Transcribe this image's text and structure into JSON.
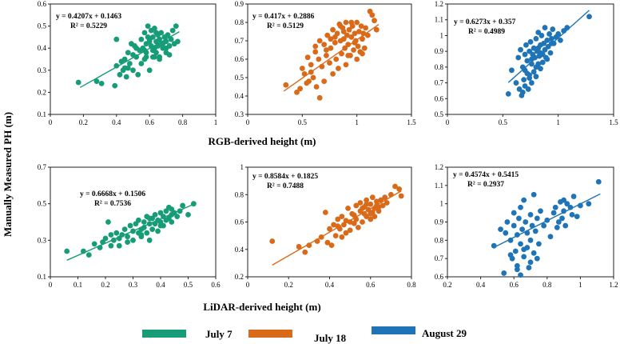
{
  "figure": {
    "y_axis_label": "Manually  Measured PH (m)",
    "rgb_axis_label": "RGB-derived height (m)",
    "lidar_axis_label": "LiDAR-derived height (m)"
  },
  "legend": {
    "items": [
      {
        "label": "July 7",
        "color": "#169c77"
      },
      {
        "label": "July 18",
        "color": "#d96a1a"
      },
      {
        "label": "August 29",
        "color": "#1e74b6"
      }
    ]
  },
  "chart_data": [
    {
      "type": "scatter",
      "id": "rgb-jul7",
      "row": "RGB",
      "series": "July 7",
      "color": "#169c77",
      "equation": "y = 0.4207x + 0.1463",
      "r2": "R² = 0.5229",
      "slope": 0.4207,
      "intercept": 0.1463,
      "fit_range": [
        0.18,
        0.78
      ],
      "xlim": [
        0,
        1
      ],
      "ylim": [
        0.1,
        0.6
      ],
      "xticks": [
        0,
        0.2,
        0.4,
        0.6,
        0.8,
        1
      ],
      "yticks": [
        0.1,
        0.2,
        0.3,
        0.4,
        0.5,
        0.6
      ],
      "xticklabels": [
        "0",
        "0.2",
        "0.4",
        "0.6",
        "0.8",
        "1"
      ],
      "yticklabels": [
        "0.1",
        "0.2",
        "0.3",
        "0.4",
        "0.5",
        "0.6"
      ],
      "x": [
        0.17,
        0.28,
        0.31,
        0.4,
        0.4,
        0.39,
        0.42,
        0.43,
        0.44,
        0.45,
        0.46,
        0.47,
        0.48,
        0.49,
        0.5,
        0.5,
        0.51,
        0.52,
        0.53,
        0.54,
        0.55,
        0.56,
        0.57,
        0.57,
        0.58,
        0.58,
        0.59,
        0.6,
        0.6,
        0.61,
        0.61,
        0.62,
        0.62,
        0.63,
        0.63,
        0.64,
        0.64,
        0.65,
        0.65,
        0.66,
        0.66,
        0.67,
        0.67,
        0.68,
        0.69,
        0.7,
        0.7,
        0.71,
        0.72,
        0.73,
        0.74,
        0.75,
        0.76,
        0.77,
        0.58,
        0.62,
        0.55,
        0.66,
        0.7,
        0.52,
        0.47,
        0.59,
        0.64,
        0.68,
        0.72,
        0.45,
        0.6,
        0.57,
        0.63
      ],
      "y": [
        0.245,
        0.25,
        0.24,
        0.44,
        0.32,
        0.23,
        0.28,
        0.34,
        0.3,
        0.35,
        0.27,
        0.38,
        0.33,
        0.42,
        0.3,
        0.37,
        0.41,
        0.36,
        0.28,
        0.39,
        0.44,
        0.4,
        0.35,
        0.47,
        0.42,
        0.38,
        0.5,
        0.44,
        0.3,
        0.41,
        0.48,
        0.36,
        0.45,
        0.4,
        0.49,
        0.43,
        0.38,
        0.46,
        0.41,
        0.44,
        0.36,
        0.47,
        0.42,
        0.4,
        0.45,
        0.38,
        0.43,
        0.46,
        0.41,
        0.44,
        0.48,
        0.42,
        0.5,
        0.43,
        0.36,
        0.39,
        0.33,
        0.35,
        0.4,
        0.4,
        0.31,
        0.45,
        0.47,
        0.42,
        0.37,
        0.31,
        0.43,
        0.39,
        0.36
      ]
    },
    {
      "type": "scatter",
      "id": "rgb-jul18",
      "row": "RGB",
      "series": "July 18",
      "color": "#d96a1a",
      "equation": "y = 0.417x + 0.2886",
      "r2": "R² = 0.5129",
      "slope": 0.417,
      "intercept": 0.2886,
      "fit_range": [
        0.33,
        1.2
      ],
      "xlim": [
        0,
        1.5
      ],
      "ylim": [
        0.3,
        0.9
      ],
      "xticks": [
        0,
        0.5,
        1,
        1.5
      ],
      "yticks": [
        0.3,
        0.4,
        0.5,
        0.6,
        0.7,
        0.8,
        0.9
      ],
      "xticklabels": [
        "0",
        "0.5",
        "1",
        "1.5"
      ],
      "yticklabels": [
        "0.3",
        "0.4",
        "0.5",
        "0.6",
        "0.7",
        "0.8",
        "0.9"
      ],
      "x": [
        0.35,
        0.45,
        0.48,
        0.5,
        0.52,
        0.55,
        0.56,
        0.58,
        0.6,
        0.62,
        0.63,
        0.65,
        0.66,
        0.68,
        0.7,
        0.7,
        0.72,
        0.73,
        0.75,
        0.76,
        0.78,
        0.78,
        0.8,
        0.81,
        0.82,
        0.83,
        0.84,
        0.85,
        0.86,
        0.87,
        0.88,
        0.89,
        0.9,
        0.9,
        0.91,
        0.92,
        0.93,
        0.94,
        0.95,
        0.96,
        0.97,
        0.98,
        0.99,
        1.0,
        1.01,
        1.02,
        1.03,
        1.04,
        1.05,
        1.06,
        1.07,
        1.08,
        1.1,
        1.12,
        1.14,
        1.16,
        1.18,
        0.95,
        0.88,
        0.8,
        0.72,
        0.66,
        0.58,
        0.92,
        1.0,
        0.85,
        0.76,
        0.62,
        0.54,
        0.98,
        1.05
      ],
      "y": [
        0.46,
        0.42,
        0.44,
        0.55,
        0.52,
        0.61,
        0.48,
        0.57,
        0.5,
        0.64,
        0.45,
        0.6,
        0.39,
        0.56,
        0.68,
        0.48,
        0.62,
        0.73,
        0.58,
        0.66,
        0.52,
        0.76,
        0.69,
        0.6,
        0.74,
        0.55,
        0.79,
        0.7,
        0.63,
        0.77,
        0.71,
        0.66,
        0.8,
        0.57,
        0.73,
        0.68,
        0.76,
        0.62,
        0.72,
        0.78,
        0.65,
        0.74,
        0.7,
        0.8,
        0.67,
        0.75,
        0.64,
        0.78,
        0.71,
        0.74,
        0.66,
        0.77,
        0.73,
        0.86,
        0.84,
        0.81,
        0.76,
        0.8,
        0.75,
        0.72,
        0.65,
        0.7,
        0.53,
        0.62,
        0.6,
        0.78,
        0.71,
        0.67,
        0.47,
        0.69,
        0.63
      ]
    },
    {
      "type": "scatter",
      "id": "rgb-aug29",
      "row": "RGB",
      "series": "August 29",
      "color": "#1e74b6",
      "equation": "y = 0.6273x + 0.357",
      "r2": "R² = 0.4989",
      "slope": 0.6273,
      "intercept": 0.357,
      "fit_range": [
        0.55,
        1.28
      ],
      "xlim": [
        0,
        1.5
      ],
      "ylim": [
        0.5,
        1.2
      ],
      "xticks": [
        0,
        0.5,
        1,
        1.5
      ],
      "yticks": [
        0.5,
        0.6,
        0.7,
        0.8,
        0.9,
        1.0,
        1.1,
        1.2
      ],
      "xticklabels": [
        "0",
        "0.5",
        "1",
        "1.5"
      ],
      "yticklabels": [
        "0.5",
        "0.6",
        "0.7",
        "0.8",
        "0.9",
        "1",
        "1.1",
        "1.2"
      ],
      "x": [
        0.55,
        0.58,
        0.62,
        0.64,
        0.65,
        0.66,
        0.67,
        0.68,
        0.69,
        0.7,
        0.7,
        0.71,
        0.72,
        0.72,
        0.73,
        0.74,
        0.74,
        0.75,
        0.76,
        0.76,
        0.77,
        0.78,
        0.78,
        0.79,
        0.8,
        0.8,
        0.81,
        0.82,
        0.82,
        0.83,
        0.84,
        0.84,
        0.85,
        0.86,
        0.86,
        0.87,
        0.88,
        0.88,
        0.89,
        0.9,
        0.91,
        0.92,
        0.93,
        0.94,
        0.95,
        0.96,
        0.98,
        1.0,
        1.02,
        1.05,
        1.08,
        1.28,
        0.9,
        0.8,
        0.7,
        0.76,
        0.84,
        0.94,
        0.68,
        0.74,
        0.82
      ],
      "y": [
        0.63,
        0.78,
        0.7,
        0.86,
        0.66,
        0.91,
        0.62,
        0.8,
        0.72,
        0.88,
        0.68,
        0.94,
        0.76,
        0.84,
        0.66,
        0.9,
        0.73,
        0.96,
        0.82,
        0.7,
        0.88,
        0.77,
        0.92,
        0.86,
        0.98,
        0.74,
        0.9,
        0.82,
        1.02,
        0.87,
        0.94,
        0.79,
        1.0,
        0.88,
        0.83,
        0.95,
        0.91,
        1.05,
        0.86,
        0.97,
        0.93,
        1.01,
        0.89,
        0.98,
        1.04,
        0.95,
        0.99,
        1.01,
        0.97,
        1.03,
        1.05,
        1.12,
        0.85,
        0.8,
        0.78,
        0.85,
        0.89,
        0.95,
        0.64,
        0.75,
        0.92
      ]
    },
    {
      "type": "scatter",
      "id": "lidar-jul7",
      "row": "LiDAR",
      "series": "July 7",
      "color": "#169c77",
      "equation": "y = 0.6668x + 0.1506",
      "r2": "R² = 0.7536",
      "slope": 0.6668,
      "intercept": 0.1506,
      "fit_range": [
        0.06,
        0.52
      ],
      "xlim": [
        0,
        0.6
      ],
      "ylim": [
        0.1,
        0.7
      ],
      "xticks": [
        0,
        0.1,
        0.2,
        0.3,
        0.4,
        0.5,
        0.6
      ],
      "yticks": [
        0.1,
        0.3,
        0.5,
        0.7
      ],
      "xticklabels": [
        "0",
        "0.1",
        "0.2",
        "0.3",
        "0.4",
        "0.5",
        "0.6"
      ],
      "yticklabels": [
        "0.1",
        "0.3",
        "0.5",
        "0.7"
      ],
      "x": [
        0.06,
        0.12,
        0.14,
        0.16,
        0.18,
        0.19,
        0.2,
        0.21,
        0.22,
        0.22,
        0.23,
        0.24,
        0.25,
        0.25,
        0.26,
        0.27,
        0.28,
        0.29,
        0.3,
        0.3,
        0.31,
        0.32,
        0.32,
        0.33,
        0.33,
        0.34,
        0.34,
        0.35,
        0.35,
        0.36,
        0.36,
        0.37,
        0.37,
        0.38,
        0.38,
        0.39,
        0.39,
        0.4,
        0.4,
        0.41,
        0.41,
        0.42,
        0.42,
        0.43,
        0.43,
        0.44,
        0.44,
        0.45,
        0.46,
        0.47,
        0.48,
        0.5,
        0.52,
        0.36,
        0.4,
        0.28,
        0.44,
        0.33
      ],
      "y": [
        0.24,
        0.24,
        0.22,
        0.28,
        0.26,
        0.29,
        0.31,
        0.4,
        0.33,
        0.27,
        0.3,
        0.34,
        0.31,
        0.27,
        0.33,
        0.36,
        0.32,
        0.38,
        0.35,
        0.3,
        0.39,
        0.34,
        0.41,
        0.36,
        0.32,
        0.4,
        0.37,
        0.43,
        0.34,
        0.39,
        0.3,
        0.42,
        0.36,
        0.44,
        0.39,
        0.41,
        0.35,
        0.45,
        0.4,
        0.43,
        0.38,
        0.46,
        0.41,
        0.48,
        0.42,
        0.44,
        0.47,
        0.45,
        0.43,
        0.46,
        0.49,
        0.44,
        0.5,
        0.42,
        0.38,
        0.29,
        0.4,
        0.33
      ]
    },
    {
      "type": "scatter",
      "id": "lidar-jul18",
      "row": "LiDAR",
      "series": "July 18",
      "color": "#d96a1a",
      "equation": "y = 0.8584x + 0.1825",
      "r2": "R² = 0.7488",
      "slope": 0.8584,
      "intercept": 0.1825,
      "fit_range": [
        0.12,
        0.75
      ],
      "xlim": [
        0,
        0.8
      ],
      "ylim": [
        0.2,
        1.0
      ],
      "xticks": [
        0,
        0.2,
        0.4,
        0.6,
        0.8
      ],
      "yticks": [
        0.2,
        0.4,
        0.6,
        0.8,
        1.0
      ],
      "xticklabels": [
        "0",
        "0.2",
        "0.4",
        "0.6",
        "0.8"
      ],
      "yticklabels": [
        "0.2",
        "0.4",
        "0.6",
        "0.8",
        "1"
      ],
      "x": [
        0.12,
        0.25,
        0.28,
        0.3,
        0.34,
        0.36,
        0.38,
        0.39,
        0.4,
        0.41,
        0.42,
        0.43,
        0.44,
        0.45,
        0.46,
        0.46,
        0.47,
        0.48,
        0.49,
        0.5,
        0.5,
        0.51,
        0.52,
        0.53,
        0.53,
        0.54,
        0.55,
        0.55,
        0.56,
        0.57,
        0.57,
        0.58,
        0.58,
        0.59,
        0.6,
        0.6,
        0.61,
        0.61,
        0.62,
        0.62,
        0.63,
        0.63,
        0.64,
        0.65,
        0.66,
        0.67,
        0.68,
        0.7,
        0.72,
        0.74,
        0.75,
        0.56,
        0.6,
        0.48,
        0.64,
        0.52,
        0.44,
        0.58
      ],
      "y": [
        0.46,
        0.42,
        0.38,
        0.43,
        0.46,
        0.49,
        0.67,
        0.45,
        0.55,
        0.43,
        0.58,
        0.5,
        0.62,
        0.55,
        0.49,
        0.64,
        0.58,
        0.52,
        0.7,
        0.6,
        0.54,
        0.66,
        0.59,
        0.72,
        0.62,
        0.56,
        0.68,
        0.74,
        0.6,
        0.66,
        0.71,
        0.64,
        0.76,
        0.69,
        0.62,
        0.73,
        0.67,
        0.78,
        0.7,
        0.64,
        0.75,
        0.72,
        0.68,
        0.76,
        0.72,
        0.78,
        0.74,
        0.8,
        0.86,
        0.84,
        0.79,
        0.7,
        0.66,
        0.61,
        0.71,
        0.65,
        0.57,
        0.73
      ]
    },
    {
      "type": "scatter",
      "id": "lidar-aug29",
      "row": "LiDAR",
      "series": "August 29",
      "color": "#1e74b6",
      "equation": "y = 0.4574x + 0.5415",
      "r2": "R² = 0.2937",
      "slope": 0.4574,
      "intercept": 0.5415,
      "fit_range": [
        0.48,
        1.12
      ],
      "xlim": [
        0.2,
        1.2
      ],
      "ylim": [
        0.6,
        1.2
      ],
      "xticks": [
        0.2,
        0.4,
        0.6,
        0.8,
        1.0,
        1.2
      ],
      "yticks": [
        0.6,
        0.7,
        0.8,
        0.9,
        1.0,
        1.1,
        1.2
      ],
      "xticklabels": [
        "0.2",
        "0.4",
        "0.6",
        "0.8",
        "1",
        "1.2"
      ],
      "yticklabels": [
        "0.6",
        "0.7",
        "0.8",
        "0.9",
        "1",
        "1.1",
        "1.2"
      ],
      "x": [
        0.48,
        0.52,
        0.54,
        0.55,
        0.56,
        0.58,
        0.59,
        0.6,
        0.6,
        0.61,
        0.62,
        0.62,
        0.63,
        0.64,
        0.64,
        0.65,
        0.66,
        0.66,
        0.67,
        0.68,
        0.68,
        0.69,
        0.7,
        0.7,
        0.71,
        0.72,
        0.72,
        0.73,
        0.74,
        0.75,
        0.76,
        0.78,
        0.8,
        0.82,
        0.84,
        0.85,
        0.86,
        0.87,
        0.88,
        0.89,
        0.9,
        0.91,
        0.92,
        0.94,
        0.96,
        0.98,
        1.0,
        1.05,
        1.11,
        0.64,
        0.7,
        0.58,
        0.74,
        0.66,
        0.9,
        0.95,
        0.62
      ],
      "y": [
        0.77,
        0.86,
        0.62,
        0.84,
        0.9,
        0.8,
        0.7,
        0.88,
        0.95,
        0.74,
        0.83,
        0.66,
        0.92,
        0.78,
        0.98,
        0.86,
        0.71,
        1.02,
        0.9,
        0.76,
        0.84,
        0.65,
        0.94,
        0.8,
        0.88,
        0.73,
        1.05,
        0.85,
        0.92,
        0.78,
        0.96,
        0.88,
        0.91,
        0.82,
        0.95,
        0.98,
        0.87,
        0.9,
        1.01,
        0.92,
        0.96,
        0.88,
        1.0,
        0.98,
        1.04,
        0.93,
        0.99,
        1.0,
        1.12,
        0.61,
        0.68,
        0.72,
        0.7,
        0.75,
        1.02,
        0.94,
        0.64
      ]
    }
  ]
}
